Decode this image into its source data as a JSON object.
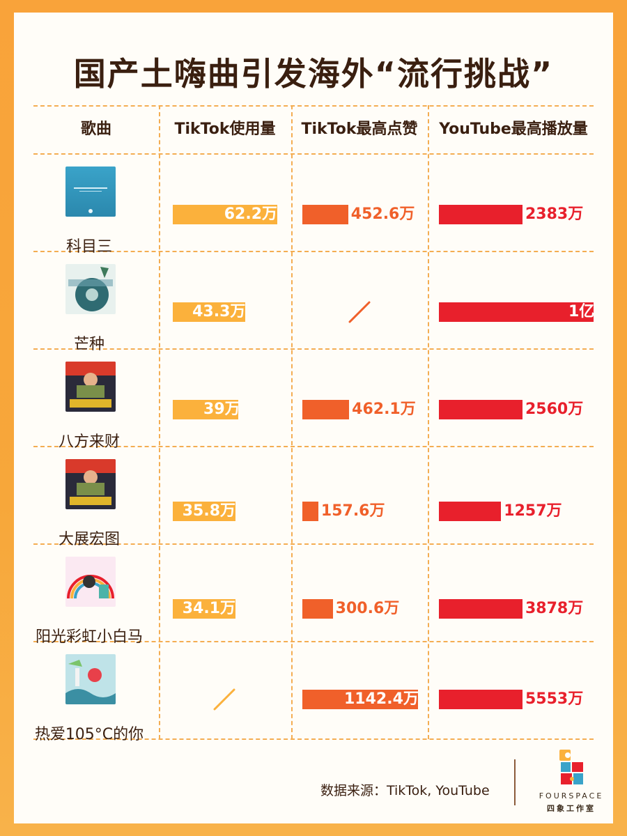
{
  "title": "国产土嗨曲引发海外“流行挑战”",
  "columns": [
    "歌曲",
    "TikTok使用量",
    "TikTok最高点赞",
    "YouTube最高播放量"
  ],
  "rows": [
    {
      "song": "科目三",
      "tiktok_use": "62.2万",
      "tiktok_likes": "452.6万",
      "youtube_views": "2383万"
    },
    {
      "song": "芒种",
      "tiktok_use": "43.3万",
      "tiktok_likes": "/",
      "youtube_views": "1亿"
    },
    {
      "song": "八方来财",
      "tiktok_use": "39万",
      "tiktok_likes": "462.1万",
      "youtube_views": "2560万"
    },
    {
      "song": "大展宏图",
      "tiktok_use": "35.8万",
      "tiktok_likes": "157.6万",
      "youtube_views": "1257万"
    },
    {
      "song": "阳光彩虹小白马",
      "tiktok_use": "34.1万",
      "tiktok_likes": "300.6万",
      "youtube_views": "3878万"
    },
    {
      "song": "热爱105°C的你",
      "tiktok_use": "/",
      "tiktok_likes": "1142.4万",
      "youtube_views": "5553万"
    }
  ],
  "chart_data": {
    "type": "table",
    "categories": [
      "科目三",
      "芒种",
      "八方来财",
      "大展宏图",
      "阳光彩虹小白马",
      "热爱105°C的你"
    ],
    "series": [
      {
        "name": "TikTok使用量",
        "unit": "万",
        "values": [
          62.2,
          43.3,
          39,
          35.8,
          34.1,
          null
        ]
      },
      {
        "name": "TikTok最高点赞",
        "unit": "万",
        "values": [
          452.6,
          null,
          462.1,
          157.6,
          300.6,
          1142.4
        ]
      },
      {
        "name": "YouTube最高播放量",
        "unit": "万",
        "values": [
          2383,
          10000,
          2560,
          1257,
          3878,
          5553
        ]
      }
    ]
  },
  "colors": {
    "tiktok_use": "#fbb13c",
    "tiktok_likes": "#f0602a",
    "youtube_views": "#e8202c"
  },
  "source": "数据来源：TikTok, YouTube",
  "logo": {
    "en": "FOURSPACE",
    "zh": "四象工作室"
  }
}
